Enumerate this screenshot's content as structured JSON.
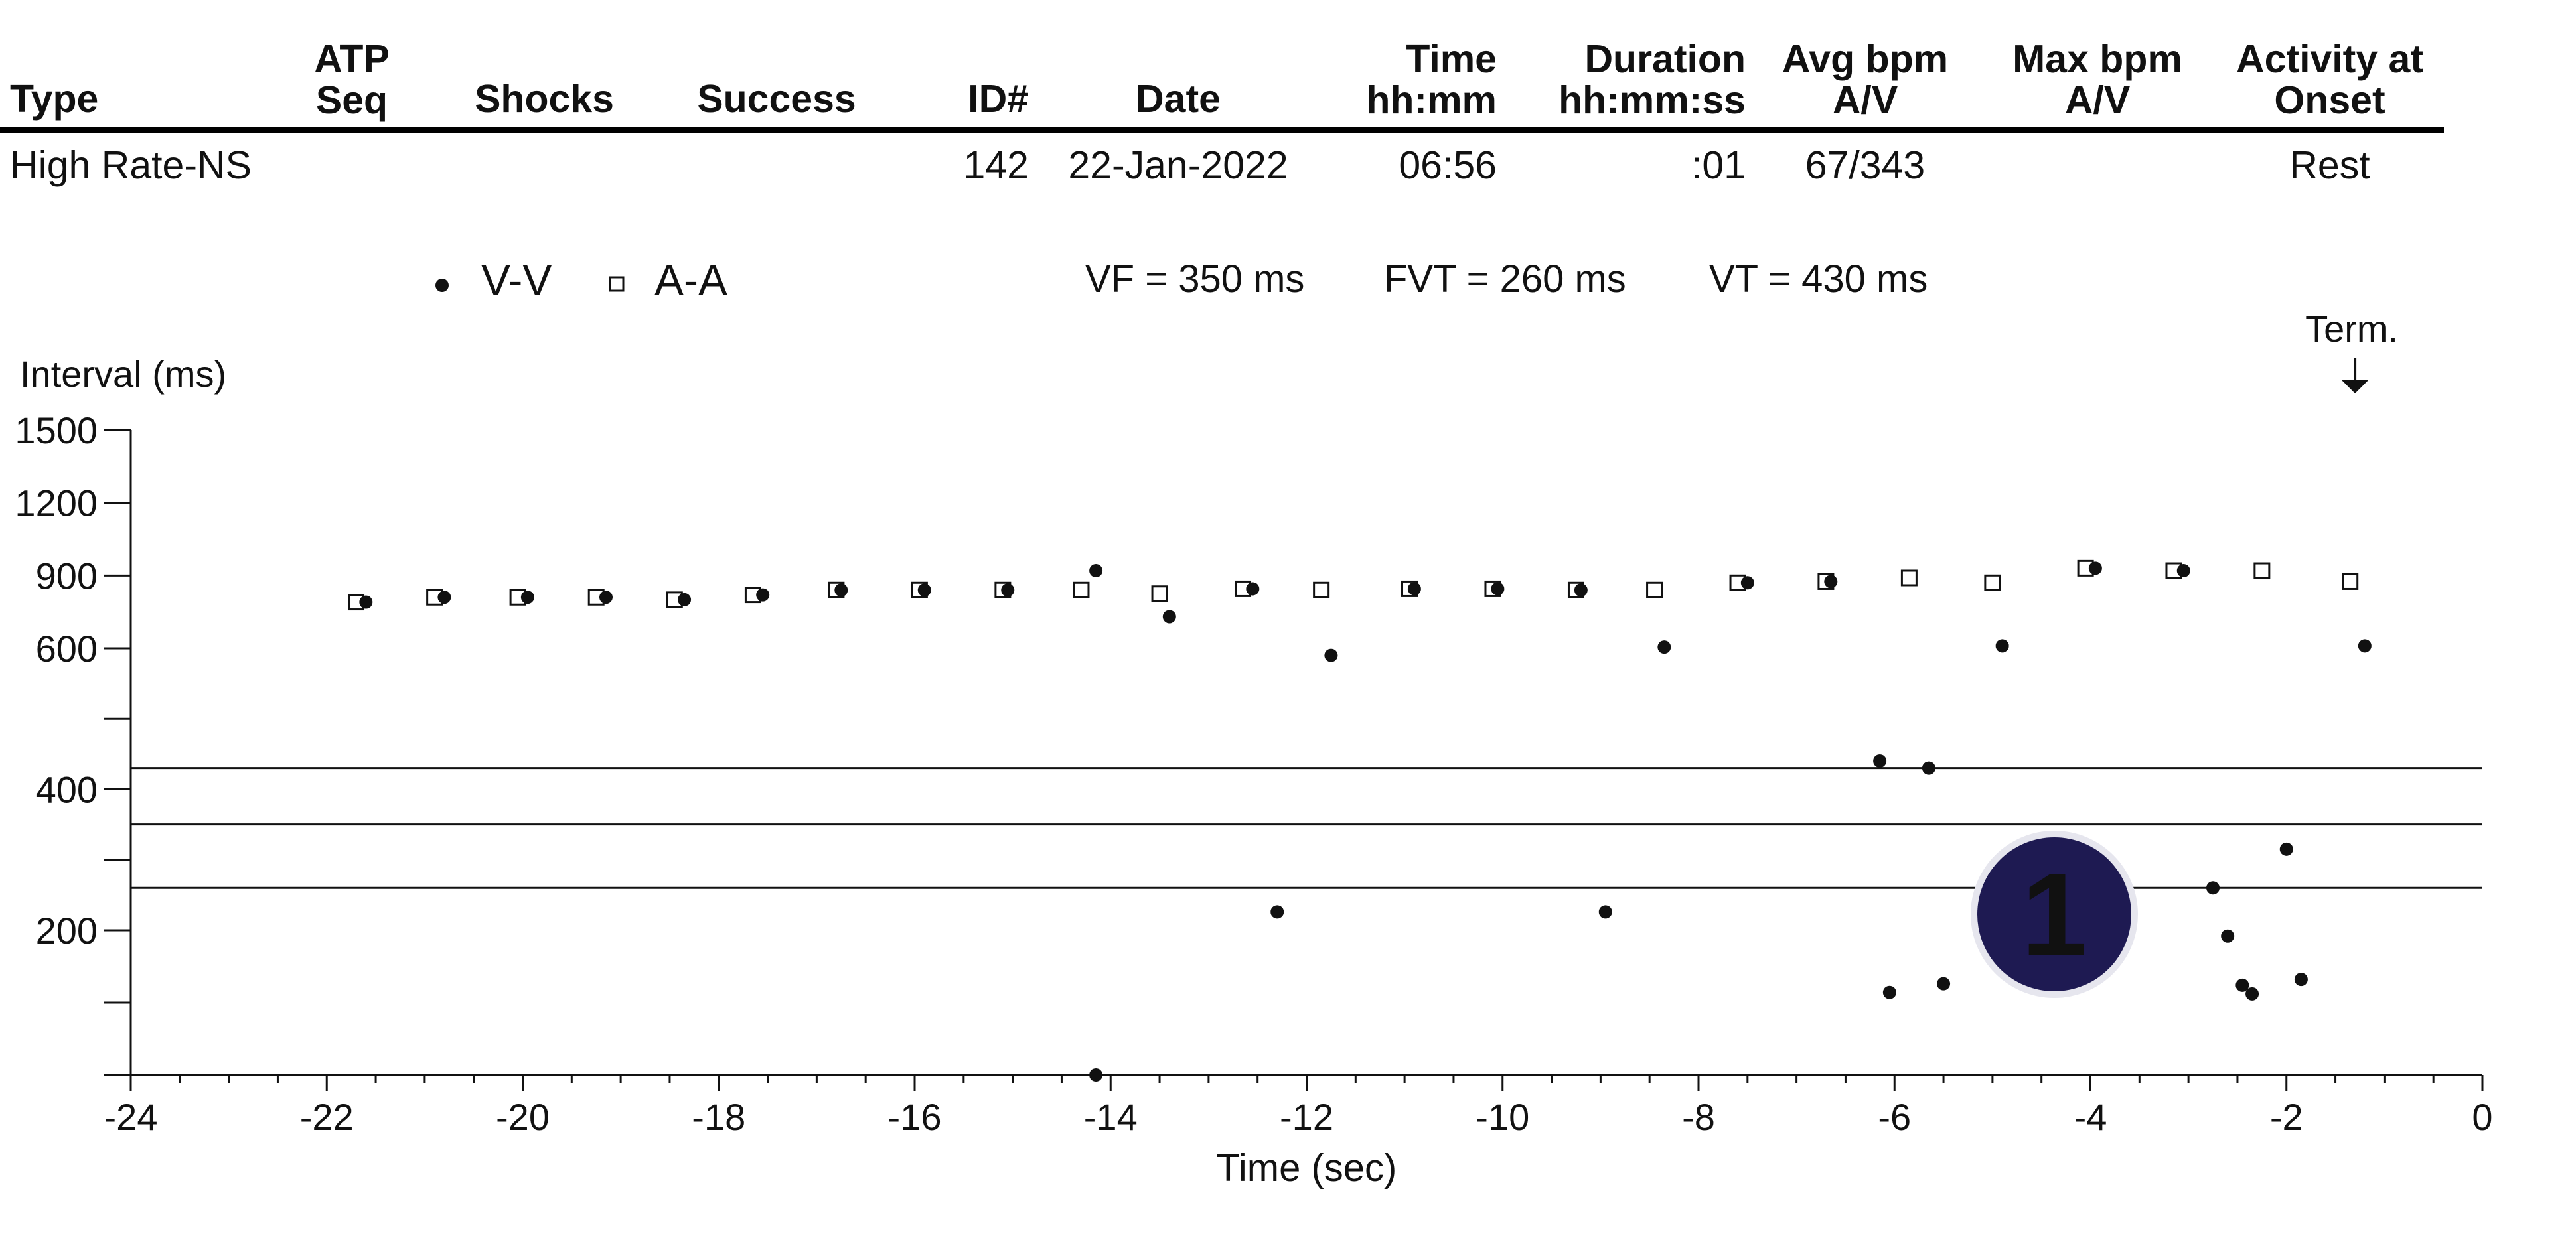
{
  "table": {
    "headers": [
      {
        "key": "type",
        "lines": [
          "Type"
        ]
      },
      {
        "key": "atp_seq",
        "lines": [
          "ATP",
          "Seq"
        ]
      },
      {
        "key": "shocks",
        "lines": [
          "Shocks"
        ]
      },
      {
        "key": "success",
        "lines": [
          "Success"
        ]
      },
      {
        "key": "id",
        "lines": [
          "ID#"
        ]
      },
      {
        "key": "date",
        "lines": [
          "Date"
        ]
      },
      {
        "key": "time",
        "lines": [
          "Time",
          "hh:mm"
        ]
      },
      {
        "key": "duration",
        "lines": [
          "Duration",
          "hh:mm:ss"
        ]
      },
      {
        "key": "avg_bpm",
        "lines": [
          "Avg bpm",
          "A/V"
        ]
      },
      {
        "key": "max_bpm",
        "lines": [
          "Max bpm",
          "A/V"
        ]
      },
      {
        "key": "activity",
        "lines": [
          "Activity at",
          "Onset"
        ]
      }
    ],
    "row": {
      "type": "High Rate-NS",
      "atp_seq": "",
      "shocks": "",
      "success": "",
      "id": "142",
      "date": "22-Jan-2022",
      "time": "06:56",
      "duration": ":01",
      "avg_bpm": "67/343",
      "max_bpm": "",
      "activity": "Rest"
    }
  },
  "chart_data": {
    "type": "scatter",
    "title": "",
    "xlabel": "Time (sec)",
    "ylabel": "Interval (ms)",
    "xlim": [
      -24,
      0
    ],
    "x_ticks": [
      -24,
      -22,
      -20,
      -18,
      -16,
      -14,
      -12,
      -10,
      -8,
      -6,
      -4,
      -2,
      0
    ],
    "y_tick_labels": [
      "1500",
      "1200",
      "900",
      "600",
      "400",
      "200"
    ],
    "y_tick_levels": [
      "1500",
      "1200",
      "900",
      "600",
      "500",
      "400",
      "300",
      "200",
      "150",
      "100"
    ],
    "legend": {
      "placement": "top",
      "items": [
        {
          "name": "V-V",
          "marker": "filled-circle"
        },
        {
          "name": "A-A",
          "marker": "open-square"
        }
      ]
    },
    "zones": [
      {
        "label": "VF = 350 ms",
        "value": 350
      },
      {
        "label": "FVT = 260 ms",
        "value": 260
      },
      {
        "label": "VT = 430 ms",
        "value": 430
      }
    ],
    "termination": {
      "label": "Term.",
      "x": -1.3
    },
    "series": [
      {
        "name": "V-V",
        "points": [
          [
            -21.6,
            790
          ],
          [
            -20.8,
            810
          ],
          [
            -19.95,
            810
          ],
          [
            -19.15,
            810
          ],
          [
            -18.35,
            800
          ],
          [
            -17.55,
            820
          ],
          [
            -16.75,
            840
          ],
          [
            -15.9,
            840
          ],
          [
            -15.05,
            840
          ],
          [
            -14.15,
            920
          ],
          [
            -14.15,
            100
          ],
          [
            -13.4,
            730
          ],
          [
            -12.3,
            226
          ],
          [
            -12.55,
            845
          ],
          [
            -11.75,
            590
          ],
          [
            -10.9,
            845
          ],
          [
            -10.05,
            845
          ],
          [
            -9.2,
            840
          ],
          [
            -8.95,
            226
          ],
          [
            -8.35,
            605
          ],
          [
            -7.5,
            870
          ],
          [
            -6.65,
            875
          ],
          [
            -6.15,
            440
          ],
          [
            -5.65,
            430
          ],
          [
            -6.05,
            157
          ],
          [
            -5.5,
            163
          ],
          [
            -4.9,
            610
          ],
          [
            -3.95,
            930
          ],
          [
            -3.05,
            920
          ],
          [
            -2.75,
            260
          ],
          [
            -2.6,
            196
          ],
          [
            -2.45,
            162
          ],
          [
            -2.35,
            156
          ],
          [
            -2.0,
            315
          ],
          [
            -1.85,
            166
          ],
          [
            -1.2,
            610
          ]
        ]
      },
      {
        "name": "A-A",
        "points": [
          [
            -21.7,
            790
          ],
          [
            -20.9,
            810
          ],
          [
            -20.05,
            810
          ],
          [
            -19.25,
            810
          ],
          [
            -18.45,
            800
          ],
          [
            -17.65,
            820
          ],
          [
            -16.8,
            840
          ],
          [
            -15.95,
            840
          ],
          [
            -15.1,
            840
          ],
          [
            -14.3,
            840
          ],
          [
            -13.5,
            825
          ],
          [
            -12.65,
            845
          ],
          [
            -11.85,
            840
          ],
          [
            -10.95,
            845
          ],
          [
            -10.1,
            845
          ],
          [
            -9.25,
            840
          ],
          [
            -8.45,
            840
          ],
          [
            -7.6,
            870
          ],
          [
            -6.7,
            875
          ],
          [
            -5.85,
            890
          ],
          [
            -5.0,
            870
          ],
          [
            -4.05,
            930
          ],
          [
            -3.15,
            920
          ],
          [
            -2.25,
            920
          ],
          [
            -1.35,
            875
          ]
        ]
      }
    ]
  },
  "badge": {
    "number": "1",
    "fill": "#1e1a52",
    "rim": "#e6e6ee",
    "text_color": "#ffffff"
  },
  "colors": {
    "ink": "#111111",
    "background": "#ffffff"
  }
}
